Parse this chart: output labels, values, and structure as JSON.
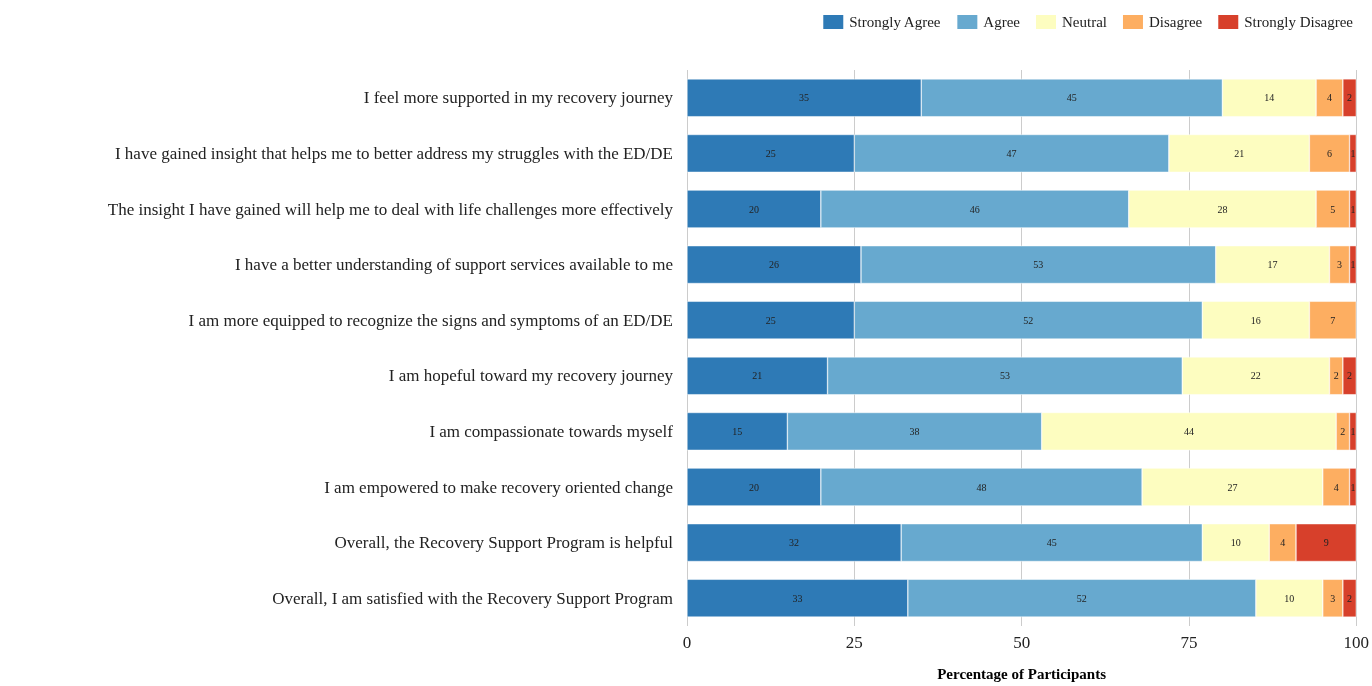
{
  "chart_data": {
    "type": "bar",
    "orientation": "horizontal",
    "stacked": true,
    "data_labels": true,
    "grid": "x",
    "legend": "top right",
    "xlabel": "Percentage of Participants",
    "xlim": [
      0,
      100
    ],
    "xticks": [
      0,
      25,
      50,
      75,
      100
    ],
    "categories": [
      "I feel more supported in my recovery journey",
      "I have gained insight that helps me to better address my struggles with the ED/DE",
      "The insight I have gained will help me to deal with life challenges more effectively",
      "I have a better understanding of support services available to me",
      "I am more equipped to recognize the signs and symptoms of an ED/DE",
      "I am hopeful toward my recovery journey",
      "I am compassionate towards myself",
      "I am empowered to make recovery oriented change",
      "Overall, the Recovery Support Program is helpful",
      "Overall, I am satisfied with the Recovery Support Program"
    ],
    "series": [
      {
        "name": "Strongly Agree",
        "color": "#2e7ab6",
        "values": [
          35,
          25,
          20,
          26,
          25,
          21,
          15,
          20,
          32,
          33
        ]
      },
      {
        "name": "Agree",
        "color": "#67a9cf",
        "values": [
          45,
          47,
          46,
          53,
          52,
          53,
          38,
          48,
          45,
          52
        ]
      },
      {
        "name": "Neutral",
        "color": "#fdfdc0",
        "values": [
          14,
          21,
          28,
          17,
          16,
          22,
          44,
          27,
          10,
          10
        ]
      },
      {
        "name": "Disagree",
        "color": "#fdae61",
        "values": [
          4,
          6,
          5,
          3,
          7,
          2,
          2,
          4,
          4,
          3
        ]
      },
      {
        "name": "Strongly Disagree",
        "color": "#d7402b",
        "values": [
          2,
          1,
          1,
          1,
          null,
          2,
          1,
          1,
          9,
          2
        ]
      }
    ]
  }
}
